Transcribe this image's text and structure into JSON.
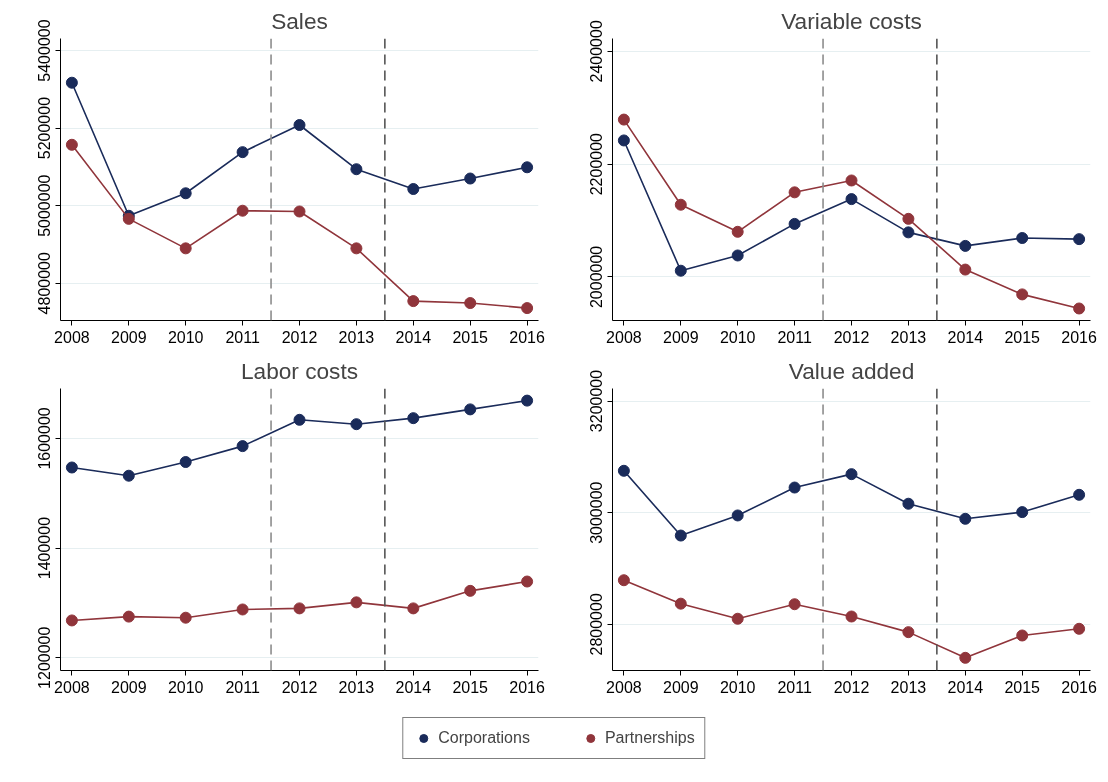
{
  "chart_data": [
    {
      "type": "line",
      "title": "Sales",
      "x": [
        2008,
        2009,
        2010,
        2011,
        2012,
        2013,
        2014,
        2015,
        2016
      ],
      "xlim": [
        2007.8,
        2016.2
      ],
      "xticks": [
        2008,
        2009,
        2010,
        2011,
        2012,
        2013,
        2014,
        2015,
        2016
      ],
      "ylim": [
        4704000,
        5431000
      ],
      "yticks": [
        4800000,
        5000000,
        5200000,
        5400000
      ],
      "grid": "y",
      "marker": "circle",
      "line_style": "solid",
      "legend": "bottom",
      "series": [
        {
          "name": "Corporations",
          "color": "#1a2b5a",
          "values": [
            5317000,
            4974000,
            5032000,
            5138000,
            5208000,
            5094000,
            5043000,
            5070000,
            5099000
          ]
        },
        {
          "name": "Partnerships",
          "color": "#90353b",
          "values": [
            5157000,
            4966000,
            4890000,
            4987000,
            4985000,
            4890000,
            4754000,
            4749000,
            4736000
          ]
        }
      ],
      "ref_lines": [
        {
          "axis": "x",
          "value": 2011.5,
          "label": null,
          "color": "#8c8c8c",
          "line_style": "dashed"
        },
        {
          "axis": "x",
          "value": 2013.5,
          "label": null,
          "color": "#555555",
          "line_style": "dashed"
        }
      ]
    },
    {
      "type": "line",
      "title": "Variable costs",
      "x": [
        2008,
        2009,
        2010,
        2011,
        2012,
        2013,
        2014,
        2015,
        2016
      ],
      "xlim": [
        2007.8,
        2016.2
      ],
      "xticks": [
        2008,
        2009,
        2010,
        2011,
        2012,
        2013,
        2014,
        2015,
        2016
      ],
      "ylim": [
        1922700,
        2422800
      ],
      "yticks": [
        2000000,
        2200000,
        2400000
      ],
      "grid": "y",
      "marker": "circle",
      "line_style": "solid",
      "series": [
        {
          "color": "#1a2b5a",
          "values": [
            2242000,
            2011000,
            2038000,
            2094000,
            2138000,
            2079000,
            2055000,
            2069000,
            2067000
          ]
        },
        {
          "color": "#90353b",
          "values": [
            2279000,
            2128000,
            2080000,
            2150000,
            2171000,
            2103000,
            2013000,
            1969000,
            1944000
          ]
        }
      ],
      "ref_lines": [
        {
          "axis": "x",
          "value": 2011.5,
          "label": null,
          "color": "#8c8c8c",
          "line_style": "dashed"
        },
        {
          "axis": "x",
          "value": 2013.5,
          "label": null,
          "color": "#555555",
          "line_style": "dashed"
        }
      ]
    },
    {
      "type": "line",
      "title": "Labor costs",
      "x": [
        2008,
        2009,
        2010,
        2011,
        2012,
        2013,
        2014,
        2015,
        2016
      ],
      "xlim": [
        2007.8,
        2016.2
      ],
      "xticks": [
        2008,
        2009,
        2010,
        2011,
        2012,
        2013,
        2014,
        2015,
        2016
      ],
      "ylim": [
        1176700,
        1691100
      ],
      "yticks": [
        1200000,
        1400000,
        1600000
      ],
      "grid": "y",
      "marker": "circle",
      "line_style": "solid",
      "series": [
        {
          "color": "#1a2b5a",
          "values": [
            1547000,
            1532000,
            1557000,
            1586000,
            1634000,
            1626000,
            1637000,
            1653000,
            1669000
          ]
        },
        {
          "color": "#90353b",
          "values": [
            1268000,
            1275000,
            1273000,
            1288000,
            1290000,
            1301000,
            1290000,
            1322000,
            1339000
          ]
        }
      ],
      "ref_lines": [
        {
          "axis": "x",
          "value": 2011.5,
          "label": null,
          "color": "#8c8c8c",
          "line_style": "dashed"
        },
        {
          "axis": "x",
          "value": 2013.5,
          "label": null,
          "color": "#555555",
          "line_style": "dashed"
        }
      ]
    },
    {
      "type": "line",
      "title": "Value added",
      "x": [
        2008,
        2009,
        2010,
        2011,
        2012,
        2013,
        2014,
        2015,
        2016
      ],
      "xlim": [
        2007.8,
        2016.2
      ],
      "xticks": [
        2008,
        2009,
        2010,
        2011,
        2012,
        2013,
        2014,
        2015,
        2016
      ],
      "ylim": [
        2717300,
        3222400
      ],
      "yticks": [
        2800000,
        3000000,
        3200000
      ],
      "grid": "y",
      "marker": "circle",
      "line_style": "solid",
      "series": [
        {
          "color": "#1a2b5a",
          "values": [
            3075000,
            2959000,
            2995000,
            3045000,
            3069000,
            3016000,
            2989000,
            3001000,
            3032000
          ]
        },
        {
          "color": "#90353b",
          "values": [
            2879000,
            2837000,
            2810000,
            2836000,
            2814000,
            2786000,
            2740000,
            2780000,
            2792000
          ]
        }
      ],
      "ref_lines": [
        {
          "axis": "x",
          "value": 2011.5,
          "label": null,
          "color": "#8c8c8c",
          "line_style": "dashed"
        },
        {
          "axis": "x",
          "value": 2013.5,
          "label": null,
          "color": "#555555",
          "line_style": "dashed"
        }
      ]
    }
  ]
}
